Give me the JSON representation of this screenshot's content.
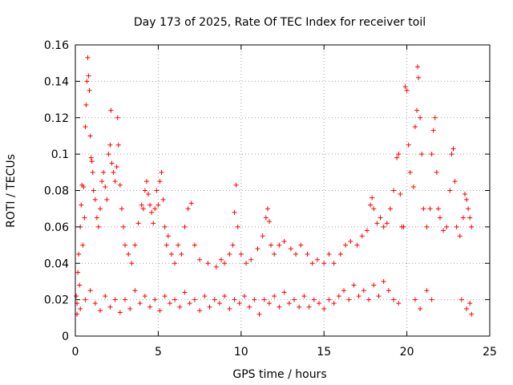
{
  "chart_data": {
    "type": "scatter",
    "title": "Day 173 of 2025, Rate Of TEC Index for receiver toil",
    "xlabel": "GPS time / hours",
    "ylabel": "ROTI / TECUs",
    "xlim": [
      0,
      25
    ],
    "ylim": [
      0,
      0.16
    ],
    "x_ticks": [
      0,
      5,
      10,
      15,
      20,
      25
    ],
    "x_tick_labels": [
      "0",
      "5",
      "10",
      "15",
      "20",
      "25"
    ],
    "y_ticks": [
      0,
      0.02,
      0.04,
      0.06,
      0.08,
      0.1,
      0.12,
      0.14,
      0.16
    ],
    "y_tick_labels": [
      "0",
      "0.02",
      "0.04",
      "0.06",
      "0.08",
      "0.1",
      "0.12",
      "0.14",
      "0.16"
    ],
    "grid": true,
    "legend": "none",
    "marker": "+",
    "series": [
      {
        "name": "ROTI",
        "color": "#ff0000",
        "points": [
          [
            0.05,
            0.022
          ],
          [
            0.1,
            0.018
          ],
          [
            0.15,
            0.035
          ],
          [
            0.2,
            0.045
          ],
          [
            0.25,
            0.028
          ],
          [
            0.3,
            0.06
          ],
          [
            0.35,
            0.072
          ],
          [
            0.4,
            0.083
          ],
          [
            0.45,
            0.05
          ],
          [
            0.5,
            0.082
          ],
          [
            0.55,
            0.065
          ],
          [
            0.6,
            0.115
          ],
          [
            0.65,
            0.127
          ],
          [
            0.7,
            0.14
          ],
          [
            0.75,
            0.153
          ],
          [
            0.8,
            0.143
          ],
          [
            0.85,
            0.135
          ],
          [
            0.9,
            0.11
          ],
          [
            0.95,
            0.098
          ],
          [
            1.0,
            0.096
          ],
          [
            1.05,
            0.09
          ],
          [
            1.1,
            0.08
          ],
          [
            1.2,
            0.075
          ],
          [
            1.3,
            0.065
          ],
          [
            1.4,
            0.06
          ],
          [
            1.5,
            0.07
          ],
          [
            1.6,
            0.085
          ],
          [
            1.7,
            0.09
          ],
          [
            1.8,
            0.082
          ],
          [
            1.9,
            0.075
          ],
          [
            2.0,
            0.1
          ],
          [
            2.1,
            0.105
          ],
          [
            2.15,
            0.124
          ],
          [
            2.2,
            0.095
          ],
          [
            2.3,
            0.09
          ],
          [
            2.4,
            0.085
          ],
          [
            2.5,
            0.093
          ],
          [
            2.55,
            0.12
          ],
          [
            2.6,
            0.105
          ],
          [
            2.7,
            0.083
          ],
          [
            2.8,
            0.07
          ],
          [
            2.9,
            0.06
          ],
          [
            3.0,
            0.05
          ],
          [
            3.2,
            0.045
          ],
          [
            3.4,
            0.04
          ],
          [
            3.6,
            0.05
          ],
          [
            3.8,
            0.062
          ],
          [
            4.0,
            0.072
          ],
          [
            4.1,
            0.07
          ],
          [
            4.2,
            0.08
          ],
          [
            4.3,
            0.085
          ],
          [
            4.4,
            0.078
          ],
          [
            4.5,
            0.072
          ],
          [
            4.6,
            0.068
          ],
          [
            4.7,
            0.062
          ],
          [
            4.8,
            0.07
          ],
          [
            4.9,
            0.08
          ],
          [
            5.0,
            0.072
          ],
          [
            5.1,
            0.085
          ],
          [
            5.2,
            0.09
          ],
          [
            5.3,
            0.075
          ],
          [
            5.4,
            0.06
          ],
          [
            5.5,
            0.05
          ],
          [
            5.6,
            0.055
          ],
          [
            5.8,
            0.045
          ],
          [
            6.0,
            0.04
          ],
          [
            6.2,
            0.05
          ],
          [
            6.4,
            0.045
          ],
          [
            6.6,
            0.06
          ],
          [
            6.8,
            0.07
          ],
          [
            7.0,
            0.073
          ],
          [
            7.2,
            0.05
          ],
          [
            7.5,
            0.042
          ],
          [
            8.0,
            0.04
          ],
          [
            8.5,
            0.038
          ],
          [
            8.8,
            0.042
          ],
          [
            9.0,
            0.04
          ],
          [
            9.3,
            0.045
          ],
          [
            9.5,
            0.05
          ],
          [
            9.6,
            0.068
          ],
          [
            9.7,
            0.083
          ],
          [
            9.8,
            0.06
          ],
          [
            10.0,
            0.045
          ],
          [
            10.3,
            0.04
          ],
          [
            10.6,
            0.042
          ],
          [
            11.0,
            0.048
          ],
          [
            11.3,
            0.055
          ],
          [
            11.5,
            0.065
          ],
          [
            11.6,
            0.07
          ],
          [
            11.7,
            0.063
          ],
          [
            11.8,
            0.05
          ],
          [
            12.0,
            0.045
          ],
          [
            12.3,
            0.05
          ],
          [
            12.6,
            0.052
          ],
          [
            13.0,
            0.048
          ],
          [
            13.3,
            0.045
          ],
          [
            13.6,
            0.05
          ],
          [
            14.0,
            0.045
          ],
          [
            14.3,
            0.04
          ],
          [
            14.6,
            0.042
          ],
          [
            15.0,
            0.04
          ],
          [
            15.3,
            0.045
          ],
          [
            15.6,
            0.04
          ],
          [
            16.0,
            0.045
          ],
          [
            16.3,
            0.05
          ],
          [
            16.6,
            0.052
          ],
          [
            17.0,
            0.05
          ],
          [
            17.3,
            0.055
          ],
          [
            17.6,
            0.058
          ],
          [
            17.8,
            0.072
          ],
          [
            17.9,
            0.076
          ],
          [
            18.0,
            0.07
          ],
          [
            18.2,
            0.062
          ],
          [
            18.4,
            0.065
          ],
          [
            18.6,
            0.06
          ],
          [
            18.8,
            0.062
          ],
          [
            19.0,
            0.07
          ],
          [
            19.2,
            0.08
          ],
          [
            19.4,
            0.098
          ],
          [
            19.5,
            0.1
          ],
          [
            19.6,
            0.078
          ],
          [
            19.7,
            0.06
          ],
          [
            19.8,
            0.06
          ],
          [
            19.9,
            0.137
          ],
          [
            20.0,
            0.135
          ],
          [
            20.1,
            0.105
          ],
          [
            20.2,
            0.09
          ],
          [
            20.4,
            0.082
          ],
          [
            20.5,
            0.115
          ],
          [
            20.6,
            0.124
          ],
          [
            20.65,
            0.148
          ],
          [
            20.7,
            0.142
          ],
          [
            20.8,
            0.12
          ],
          [
            20.9,
            0.1
          ],
          [
            21.0,
            0.07
          ],
          [
            21.2,
            0.06
          ],
          [
            21.4,
            0.07
          ],
          [
            21.5,
            0.1
          ],
          [
            21.6,
            0.113
          ],
          [
            21.7,
            0.12
          ],
          [
            21.8,
            0.09
          ],
          [
            21.9,
            0.07
          ],
          [
            22.0,
            0.065
          ],
          [
            22.2,
            0.058
          ],
          [
            22.4,
            0.06
          ],
          [
            22.6,
            0.08
          ],
          [
            22.7,
            0.1
          ],
          [
            22.8,
            0.103
          ],
          [
            22.9,
            0.085
          ],
          [
            23.0,
            0.06
          ],
          [
            23.2,
            0.055
          ],
          [
            23.4,
            0.065
          ],
          [
            23.5,
            0.078
          ],
          [
            23.6,
            0.075
          ],
          [
            23.7,
            0.07
          ],
          [
            23.8,
            0.065
          ],
          [
            23.9,
            0.06
          ],
          [
            0.1,
            0.012
          ],
          [
            0.3,
            0.015
          ],
          [
            0.6,
            0.02
          ],
          [
            0.9,
            0.025
          ],
          [
            1.2,
            0.018
          ],
          [
            1.5,
            0.014
          ],
          [
            1.8,
            0.022
          ],
          [
            2.1,
            0.016
          ],
          [
            2.4,
            0.02
          ],
          [
            2.7,
            0.013
          ],
          [
            3.0,
            0.02
          ],
          [
            3.3,
            0.015
          ],
          [
            3.6,
            0.025
          ],
          [
            3.9,
            0.018
          ],
          [
            4.2,
            0.022
          ],
          [
            4.5,
            0.016
          ],
          [
            4.8,
            0.02
          ],
          [
            5.1,
            0.014
          ],
          [
            5.4,
            0.022
          ],
          [
            5.7,
            0.018
          ],
          [
            6.0,
            0.02
          ],
          [
            6.3,
            0.016
          ],
          [
            6.6,
            0.024
          ],
          [
            6.9,
            0.018
          ],
          [
            7.2,
            0.02
          ],
          [
            7.5,
            0.014
          ],
          [
            7.8,
            0.022
          ],
          [
            8.1,
            0.016
          ],
          [
            8.4,
            0.02
          ],
          [
            8.7,
            0.018
          ],
          [
            9.0,
            0.022
          ],
          [
            9.3,
            0.015
          ],
          [
            9.6,
            0.02
          ],
          [
            9.9,
            0.018
          ],
          [
            10.2,
            0.022
          ],
          [
            10.5,
            0.016
          ],
          [
            10.8,
            0.02
          ],
          [
            11.1,
            0.012
          ],
          [
            11.4,
            0.02
          ],
          [
            11.7,
            0.018
          ],
          [
            12.0,
            0.022
          ],
          [
            12.3,
            0.016
          ],
          [
            12.6,
            0.024
          ],
          [
            12.9,
            0.018
          ],
          [
            13.2,
            0.02
          ],
          [
            13.5,
            0.016
          ],
          [
            13.8,
            0.022
          ],
          [
            14.1,
            0.016
          ],
          [
            14.4,
            0.02
          ],
          [
            14.7,
            0.018
          ],
          [
            15.0,
            0.015
          ],
          [
            15.3,
            0.02
          ],
          [
            15.6,
            0.018
          ],
          [
            15.9,
            0.022
          ],
          [
            16.2,
            0.025
          ],
          [
            16.5,
            0.02
          ],
          [
            16.8,
            0.028
          ],
          [
            17.1,
            0.022
          ],
          [
            17.4,
            0.025
          ],
          [
            17.7,
            0.02
          ],
          [
            18.0,
            0.028
          ],
          [
            18.3,
            0.022
          ],
          [
            18.6,
            0.03
          ],
          [
            18.9,
            0.025
          ],
          [
            19.2,
            0.02
          ],
          [
            19.5,
            0.018
          ],
          [
            20.5,
            0.02
          ],
          [
            20.8,
            0.015
          ],
          [
            21.2,
            0.025
          ],
          [
            21.5,
            0.02
          ],
          [
            23.3,
            0.02
          ],
          [
            23.6,
            0.015
          ],
          [
            23.8,
            0.018
          ],
          [
            23.9,
            0.012
          ]
        ]
      }
    ]
  }
}
